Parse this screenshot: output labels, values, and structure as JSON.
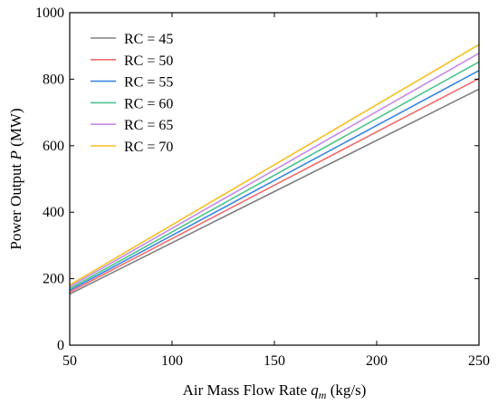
{
  "chart_data": {
    "type": "line",
    "xlabel": "Air Mass Flow Rate",
    "xlabel_symbol": "q",
    "xlabel_sub": "m",
    "xlabel_unit": " (kg/s)",
    "ylabel": "Power Output",
    "ylabel_symbol": "P",
    "ylabel_unit": " (MW)",
    "xlim": [
      50,
      250
    ],
    "ylim": [
      0,
      1000
    ],
    "xticks": [
      50,
      100,
      150,
      200,
      250
    ],
    "yticks": [
      0,
      200,
      400,
      600,
      800,
      1000
    ],
    "grid": false,
    "legend_position": "top-left",
    "x": [
      50,
      250
    ],
    "series": [
      {
        "name": "RC = 45",
        "color": "#808080",
        "values": [
          154,
          770
        ]
      },
      {
        "name": "RC = 50",
        "color": "#f26b6b",
        "values": [
          160,
          802
        ]
      },
      {
        "name": "RC = 55",
        "color": "#3a86e0",
        "values": [
          165,
          826
        ]
      },
      {
        "name": "RC = 60",
        "color": "#4cc48a",
        "values": [
          170,
          852
        ]
      },
      {
        "name": "RC = 65",
        "color": "#c58ae6",
        "values": [
          176,
          878
        ]
      },
      {
        "name": "RC = 70",
        "color": "#f5c021",
        "values": [
          181,
          904
        ]
      }
    ]
  }
}
